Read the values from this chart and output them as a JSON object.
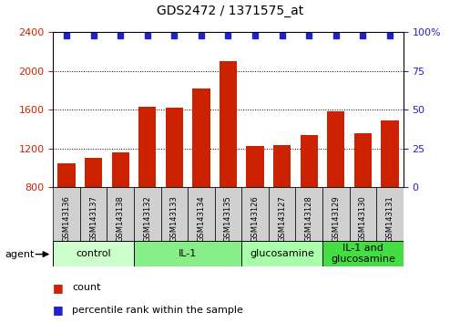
{
  "title": "GDS2472 / 1371575_at",
  "categories": [
    "GSM143136",
    "GSM143137",
    "GSM143138",
    "GSM143132",
    "GSM143133",
    "GSM143134",
    "GSM143135",
    "GSM143126",
    "GSM143127",
    "GSM143128",
    "GSM143129",
    "GSM143130",
    "GSM143131"
  ],
  "bar_values": [
    1050,
    1100,
    1160,
    1630,
    1620,
    1820,
    2100,
    1230,
    1240,
    1340,
    1580,
    1360,
    1490
  ],
  "bar_color": "#cc2200",
  "percentile_color": "#2222cc",
  "ylim_left": [
    800,
    2400
  ],
  "ylim_right": [
    0,
    100
  ],
  "yticks_left": [
    800,
    1200,
    1600,
    2000,
    2400
  ],
  "yticks_right": [
    0,
    25,
    50,
    75,
    100
  ],
  "groups": [
    {
      "label": "control",
      "indices": [
        0,
        1,
        2
      ],
      "color": "#ccffcc"
    },
    {
      "label": "IL-1",
      "indices": [
        3,
        4,
        5,
        6
      ],
      "color": "#88ee88"
    },
    {
      "label": "glucosamine",
      "indices": [
        7,
        8,
        9
      ],
      "color": "#aaffaa"
    },
    {
      "label": "IL-1 and\nglucosamine",
      "indices": [
        10,
        11,
        12
      ],
      "color": "#44dd44"
    }
  ],
  "agent_label": "agent",
  "legend_count_label": "count",
  "legend_percentile_label": "percentile rank within the sample",
  "background_color": "#ffffff",
  "tick_area_color": "#d0d0d0",
  "title_fontsize": 10,
  "bar_fontsize": 6,
  "group_fontsize": 8,
  "legend_fontsize": 8
}
